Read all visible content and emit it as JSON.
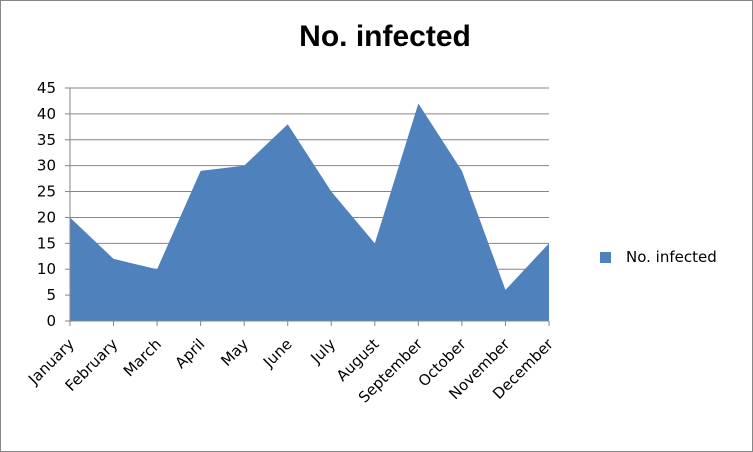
{
  "chart_data": {
    "type": "area",
    "title": "No. infected",
    "categories": [
      "January",
      "February",
      "March",
      "April",
      "May",
      "June",
      "July",
      "August",
      "September",
      "October",
      "November",
      "December"
    ],
    "series": [
      {
        "name": "No. infected",
        "values": [
          20,
          12,
          10,
          29,
          30,
          38,
          25,
          15,
          42,
          29,
          6,
          15
        ],
        "color": "#4F81BD"
      }
    ],
    "ylim": [
      0,
      45
    ],
    "yticks": [
      0,
      5,
      10,
      15,
      20,
      25,
      30,
      35,
      40,
      45
    ],
    "grid": true,
    "legend_position": "right"
  }
}
